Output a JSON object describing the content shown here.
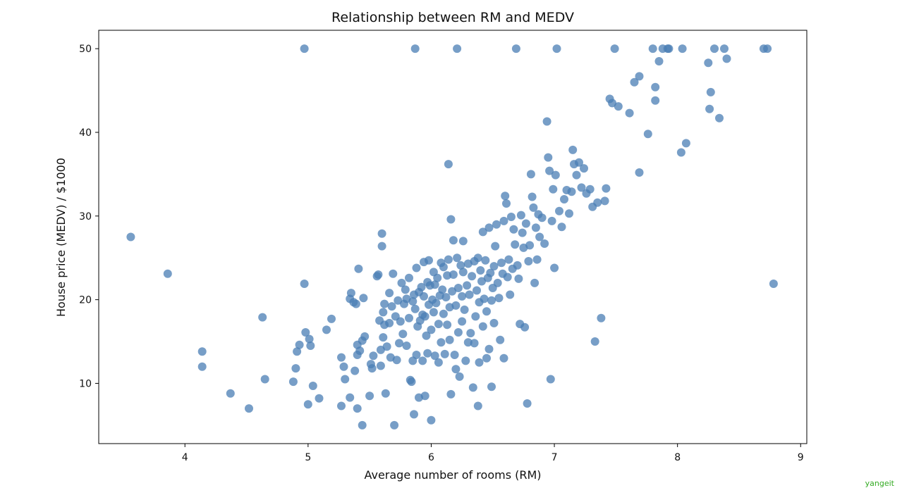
{
  "chart_data": {
    "type": "scatter",
    "title": "Relationship between RM and MEDV",
    "xlabel": "Average number of rooms (RM)",
    "ylabel": "House price (MEDV) / $1000",
    "xlim": [
      3.3,
      9.05
    ],
    "ylim": [
      2.8,
      52.2
    ],
    "xticks": [
      4,
      5,
      6,
      7,
      8,
      9
    ],
    "yticks": [
      10,
      20,
      30,
      40,
      50
    ],
    "grid": false,
    "marker_color": "#4a7eb4",
    "marker_opacity": 0.75,
    "points": [
      [
        3.56,
        27.5
      ],
      [
        3.86,
        23.1
      ],
      [
        4.14,
        13.8
      ],
      [
        4.14,
        12.0
      ],
      [
        4.37,
        8.8
      ],
      [
        4.52,
        7.0
      ],
      [
        4.63,
        17.9
      ],
      [
        4.65,
        10.5
      ],
      [
        4.88,
        10.2
      ],
      [
        4.9,
        11.8
      ],
      [
        4.91,
        13.8
      ],
      [
        4.93,
        14.6
      ],
      [
        4.97,
        50.0
      ],
      [
        4.97,
        21.9
      ],
      [
        4.98,
        16.1
      ],
      [
        5.0,
        7.5
      ],
      [
        5.01,
        15.3
      ],
      [
        5.02,
        14.5
      ],
      [
        5.04,
        9.7
      ],
      [
        5.09,
        8.2
      ],
      [
        5.15,
        16.4
      ],
      [
        5.19,
        17.7
      ],
      [
        5.27,
        7.3
      ],
      [
        5.27,
        13.1
      ],
      [
        5.29,
        12.0
      ],
      [
        5.3,
        10.5
      ],
      [
        5.34,
        8.3
      ],
      [
        5.34,
        20.1
      ],
      [
        5.35,
        20.8
      ],
      [
        5.37,
        19.7
      ],
      [
        5.38,
        11.5
      ],
      [
        5.39,
        19.5
      ],
      [
        5.4,
        13.4
      ],
      [
        5.4,
        14.6
      ],
      [
        5.4,
        7.0
      ],
      [
        5.41,
        23.7
      ],
      [
        5.42,
        13.9
      ],
      [
        5.44,
        5.0
      ],
      [
        5.44,
        15.1
      ],
      [
        5.45,
        20.2
      ],
      [
        5.46,
        15.6
      ],
      [
        5.5,
        8.5
      ],
      [
        5.51,
        12.3
      ],
      [
        5.52,
        11.8
      ],
      [
        5.53,
        13.3
      ],
      [
        5.56,
        22.8
      ],
      [
        5.57,
        23.0
      ],
      [
        5.58,
        17.5
      ],
      [
        5.59,
        12.1
      ],
      [
        5.59,
        14.0
      ],
      [
        5.6,
        27.9
      ],
      [
        5.6,
        26.4
      ],
      [
        5.61,
        15.5
      ],
      [
        5.61,
        18.5
      ],
      [
        5.62,
        19.5
      ],
      [
        5.62,
        17.0
      ],
      [
        5.63,
        8.8
      ],
      [
        5.64,
        14.4
      ],
      [
        5.66,
        17.2
      ],
      [
        5.66,
        20.8
      ],
      [
        5.67,
        13.1
      ],
      [
        5.68,
        19.2
      ],
      [
        5.69,
        23.1
      ],
      [
        5.7,
        5.0
      ],
      [
        5.71,
        18.0
      ],
      [
        5.72,
        12.8
      ],
      [
        5.73,
        19.9
      ],
      [
        5.74,
        14.8
      ],
      [
        5.75,
        17.4
      ],
      [
        5.76,
        22.0
      ],
      [
        5.77,
        15.9
      ],
      [
        5.78,
        19.5
      ],
      [
        5.79,
        21.2
      ],
      [
        5.8,
        20.1
      ],
      [
        5.8,
        14.5
      ],
      [
        5.82,
        22.6
      ],
      [
        5.82,
        17.8
      ],
      [
        5.83,
        10.4
      ],
      [
        5.84,
        10.2
      ],
      [
        5.85,
        19.8
      ],
      [
        5.85,
        12.7
      ],
      [
        5.86,
        20.6
      ],
      [
        5.86,
        6.3
      ],
      [
        5.87,
        18.9
      ],
      [
        5.87,
        50.0
      ],
      [
        5.88,
        23.8
      ],
      [
        5.88,
        13.4
      ],
      [
        5.89,
        16.8
      ],
      [
        5.9,
        20.9
      ],
      [
        5.9,
        8.3
      ],
      [
        5.91,
        17.5
      ],
      [
        5.92,
        21.5
      ],
      [
        5.93,
        18.2
      ],
      [
        5.93,
        12.7
      ],
      [
        5.94,
        24.5
      ],
      [
        5.94,
        20.4
      ],
      [
        5.95,
        8.5
      ],
      [
        5.95,
        18.0
      ],
      [
        5.96,
        15.7
      ],
      [
        5.97,
        22.1
      ],
      [
        5.97,
        13.6
      ],
      [
        5.98,
        24.7
      ],
      [
        5.98,
        19.4
      ],
      [
        5.99,
        21.7
      ],
      [
        6.0,
        5.6
      ],
      [
        6.0,
        16.4
      ],
      [
        6.01,
        20.0
      ],
      [
        6.02,
        23.3
      ],
      [
        6.02,
        18.5
      ],
      [
        6.03,
        21.8
      ],
      [
        6.03,
        13.3
      ],
      [
        6.04,
        19.6
      ],
      [
        6.05,
        22.6
      ],
      [
        6.06,
        17.1
      ],
      [
        6.06,
        12.5
      ],
      [
        6.07,
        20.5
      ],
      [
        6.08,
        24.4
      ],
      [
        6.08,
        14.9
      ],
      [
        6.09,
        21.2
      ],
      [
        6.1,
        18.3
      ],
      [
        6.1,
        23.9
      ],
      [
        6.11,
        13.5
      ],
      [
        6.12,
        20.3
      ],
      [
        6.13,
        22.9
      ],
      [
        6.13,
        17.0
      ],
      [
        6.14,
        36.2
      ],
      [
        6.14,
        24.8
      ],
      [
        6.15,
        19.1
      ],
      [
        6.15,
        15.2
      ],
      [
        6.16,
        8.7
      ],
      [
        6.16,
        29.6
      ],
      [
        6.17,
        21.0
      ],
      [
        6.18,
        27.1
      ],
      [
        6.18,
        23.0
      ],
      [
        6.19,
        13.4
      ],
      [
        6.2,
        11.7
      ],
      [
        6.2,
        19.3
      ],
      [
        6.21,
        25.0
      ],
      [
        6.21,
        50.0
      ],
      [
        6.22,
        16.1
      ],
      [
        6.22,
        21.4
      ],
      [
        6.23,
        10.8
      ],
      [
        6.24,
        24.1
      ],
      [
        6.25,
        20.4
      ],
      [
        6.25,
        17.4
      ],
      [
        6.26,
        23.3
      ],
      [
        6.26,
        27.0
      ],
      [
        6.27,
        18.8
      ],
      [
        6.28,
        12.7
      ],
      [
        6.29,
        21.7
      ],
      [
        6.3,
        14.9
      ],
      [
        6.3,
        24.3
      ],
      [
        6.31,
        20.6
      ],
      [
        6.32,
        16.0
      ],
      [
        6.33,
        22.8
      ],
      [
        6.34,
        9.5
      ],
      [
        6.35,
        24.6
      ],
      [
        6.35,
        14.8
      ],
      [
        6.36,
        18.0
      ],
      [
        6.37,
        21.1
      ],
      [
        6.38,
        7.3
      ],
      [
        6.38,
        25.0
      ],
      [
        6.39,
        19.7
      ],
      [
        6.39,
        12.5
      ],
      [
        6.4,
        23.5
      ],
      [
        6.41,
        22.2
      ],
      [
        6.42,
        28.1
      ],
      [
        6.42,
        16.8
      ],
      [
        6.43,
        20.1
      ],
      [
        6.44,
        24.7
      ],
      [
        6.45,
        18.6
      ],
      [
        6.45,
        13.0
      ],
      [
        6.46,
        22.6
      ],
      [
        6.47,
        28.6
      ],
      [
        6.47,
        14.1
      ],
      [
        6.48,
        23.2
      ],
      [
        6.49,
        9.6
      ],
      [
        6.49,
        19.9
      ],
      [
        6.5,
        21.4
      ],
      [
        6.51,
        24.0
      ],
      [
        6.51,
        17.2
      ],
      [
        6.52,
        26.4
      ],
      [
        6.53,
        29.0
      ],
      [
        6.54,
        22.0
      ],
      [
        6.55,
        20.2
      ],
      [
        6.56,
        15.2
      ],
      [
        6.57,
        24.4
      ],
      [
        6.58,
        23.1
      ],
      [
        6.59,
        29.4
      ],
      [
        6.59,
        13.0
      ],
      [
        6.6,
        32.4
      ],
      [
        6.61,
        31.5
      ],
      [
        6.62,
        22.7
      ],
      [
        6.63,
        24.8
      ],
      [
        6.64,
        20.6
      ],
      [
        6.65,
        29.9
      ],
      [
        6.66,
        23.7
      ],
      [
        6.67,
        28.4
      ],
      [
        6.68,
        26.6
      ],
      [
        6.69,
        50.0
      ],
      [
        6.7,
        24.1
      ],
      [
        6.71,
        22.5
      ],
      [
        6.72,
        17.1
      ],
      [
        6.73,
        30.1
      ],
      [
        6.74,
        28.0
      ],
      [
        6.75,
        26.2
      ],
      [
        6.76,
        16.7
      ],
      [
        6.77,
        29.1
      ],
      [
        6.78,
        7.6
      ],
      [
        6.79,
        24.6
      ],
      [
        6.8,
        26.5
      ],
      [
        6.81,
        35.0
      ],
      [
        6.82,
        32.3
      ],
      [
        6.83,
        31.0
      ],
      [
        6.84,
        22.0
      ],
      [
        6.85,
        28.6
      ],
      [
        6.86,
        24.8
      ],
      [
        6.87,
        30.2
      ],
      [
        6.88,
        27.5
      ],
      [
        6.9,
        29.8
      ],
      [
        6.92,
        26.7
      ],
      [
        6.94,
        41.3
      ],
      [
        6.95,
        37.0
      ],
      [
        6.96,
        35.4
      ],
      [
        6.97,
        10.5
      ],
      [
        6.98,
        29.4
      ],
      [
        6.99,
        33.2
      ],
      [
        7.0,
        23.8
      ],
      [
        7.01,
        34.9
      ],
      [
        7.02,
        50.0
      ],
      [
        7.04,
        30.6
      ],
      [
        7.06,
        28.7
      ],
      [
        7.08,
        32.0
      ],
      [
        7.1,
        33.1
      ],
      [
        7.12,
        30.3
      ],
      [
        7.14,
        32.9
      ],
      [
        7.15,
        37.9
      ],
      [
        7.16,
        36.2
      ],
      [
        7.18,
        34.9
      ],
      [
        7.2,
        36.4
      ],
      [
        7.22,
        33.4
      ],
      [
        7.24,
        35.7
      ],
      [
        7.26,
        32.7
      ],
      [
        7.29,
        33.2
      ],
      [
        7.31,
        31.1
      ],
      [
        7.33,
        15.0
      ],
      [
        7.35,
        31.6
      ],
      [
        7.38,
        17.8
      ],
      [
        7.41,
        31.8
      ],
      [
        7.42,
        33.3
      ],
      [
        7.45,
        44.0
      ],
      [
        7.47,
        43.5
      ],
      [
        7.49,
        50.0
      ],
      [
        7.52,
        43.1
      ],
      [
        7.61,
        42.3
      ],
      [
        7.65,
        46.0
      ],
      [
        7.69,
        46.7
      ],
      [
        7.69,
        35.2
      ],
      [
        7.76,
        39.8
      ],
      [
        7.8,
        50.0
      ],
      [
        7.82,
        45.4
      ],
      [
        7.82,
        43.8
      ],
      [
        7.85,
        48.5
      ],
      [
        7.88,
        50.0
      ],
      [
        7.92,
        50.0
      ],
      [
        7.93,
        50.0
      ],
      [
        8.03,
        37.6
      ],
      [
        8.04,
        50.0
      ],
      [
        8.07,
        38.7
      ],
      [
        8.25,
        48.3
      ],
      [
        8.26,
        42.8
      ],
      [
        8.27,
        44.8
      ],
      [
        8.3,
        50.0
      ],
      [
        8.34,
        41.7
      ],
      [
        8.38,
        50.0
      ],
      [
        8.4,
        48.8
      ],
      [
        8.7,
        50.0
      ],
      [
        8.73,
        50.0
      ],
      [
        8.78,
        21.9
      ]
    ]
  },
  "watermark": "yangeit"
}
